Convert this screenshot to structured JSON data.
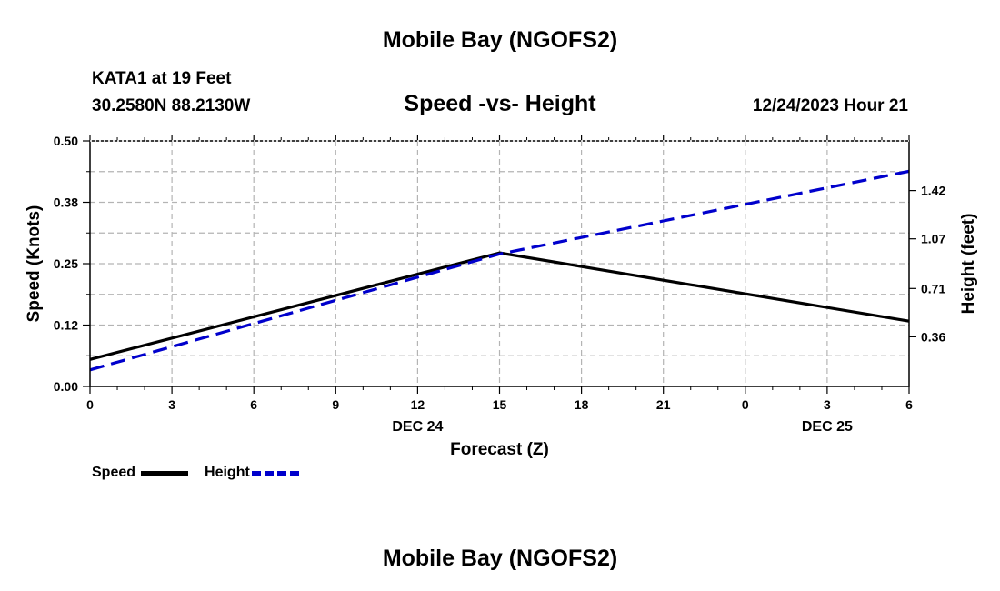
{
  "page": {
    "title": "Mobile Bay (NGOFS2)",
    "station": "KATA1 at 19 Feet",
    "coords": "30.2580N  88.2130W",
    "subtitle": "Speed -vs- Height",
    "date": "12/24/2023 Hour 21",
    "footer_title": "Mobile Bay (NGOFS2)"
  },
  "legend": {
    "speed": "Speed",
    "height": "Height"
  },
  "colors": {
    "speed": "#000000",
    "height": "#0000cc",
    "grid": "#b4b4b4"
  },
  "chart_data": {
    "type": "line",
    "title": "Speed -vs- Height",
    "xlabel": "Forecast (Z)",
    "ylabel": "Speed (Knots)",
    "y2label": "Height (feet)",
    "x": [
      0,
      3,
      6,
      9,
      12,
      15,
      18,
      21,
      24,
      27,
      30
    ],
    "x_tick_labels": [
      "0",
      "3",
      "6",
      "9",
      "12",
      "15",
      "18",
      "21",
      "0",
      "3",
      "6"
    ],
    "x_date_labels": [
      {
        "label": "DEC 24",
        "x": 12
      },
      {
        "label": "DEC 25",
        "x": 27
      }
    ],
    "xlim": [
      0,
      30
    ],
    "ylim": [
      0,
      0.5
    ],
    "y_ticks": [
      0,
      0.125,
      0.25,
      0.375,
      0.5
    ],
    "y_tick_labels": [
      "0.00",
      "0.12",
      "0.25",
      "0.38",
      "0.50"
    ],
    "y2lim": [
      0,
      1.78
    ],
    "y2_ticks": [
      0.36,
      0.71,
      1.07,
      1.42
    ],
    "y2_tick_labels": [
      "0.36",
      "0.71",
      "1.07",
      "1.42"
    ],
    "series": [
      {
        "name": "Speed",
        "axis": "left",
        "style": "solid",
        "x": [
          0,
          15,
          30
        ],
        "values": [
          0.055,
          0.272,
          0.133
        ]
      },
      {
        "name": "Height",
        "axis": "right",
        "style": "dashed",
        "x": [
          0,
          15,
          30
        ],
        "values": [
          0.12,
          0.96,
          1.56
        ]
      }
    ],
    "legend": "bottom-left",
    "grid": true
  }
}
